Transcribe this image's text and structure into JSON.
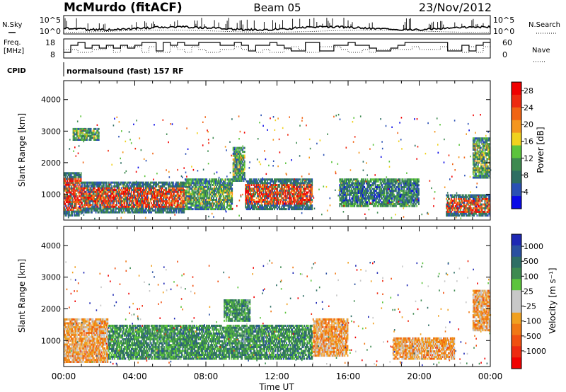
{
  "header": {
    "station": "McMurdo (fitACF)",
    "beam": "Beam 05",
    "date": "23/Nov/2012"
  },
  "summary_panel": {
    "left_labels": [
      "N.Sky",
      "Freq.",
      "[MHz]",
      "CPID"
    ],
    "right_labels": [
      "N.Search",
      "Nave"
    ],
    "noise_ticks": [
      "10^5",
      "10^0"
    ],
    "noise_ticks_right": [
      "10^5",
      "10^0"
    ],
    "freq_ticks": [
      "18",
      "8"
    ],
    "nave_ticks": [
      "60",
      "0"
    ],
    "cpid_text": "normalsound (fast) 157 RF"
  },
  "chart_data": [
    {
      "type": "heatmap",
      "name": "power",
      "ylabel": "Slant Range [km]",
      "ylim": [
        180,
        4600
      ],
      "yticks": [
        1000,
        2000,
        3000,
        4000
      ],
      "xlim": [
        0,
        24
      ],
      "xticks": [
        "00:00",
        "04:00",
        "08:00",
        "12:00",
        "16:00",
        "20:00",
        "00:00"
      ],
      "xlabel": "Time UT",
      "colorbar": {
        "label": "Power [dB]",
        "ticks": [
          "4",
          "8",
          "12",
          "16",
          "20",
          "24",
          "28"
        ],
        "colors": [
          "#0a0ae6",
          "#2a50b4",
          "#2e6e62",
          "#3e8a50",
          "#5cc43c",
          "#f0d21e",
          "#f4961e",
          "#f06414",
          "#ee2a10",
          "#f00000"
        ]
      },
      "echo_regions": [
        {
          "t": [
            0.0,
            1.0
          ],
          "r": [
            300,
            1700
          ],
          "level": "high"
        },
        {
          "t": [
            1.0,
            6.8
          ],
          "r": [
            400,
            1400
          ],
          "level": "high"
        },
        {
          "t": [
            6.8,
            9.5
          ],
          "r": [
            500,
            1500
          ],
          "level": "medium"
        },
        {
          "t": [
            9.5,
            10.2
          ],
          "r": [
            1400,
            2500
          ],
          "level": "medium"
        },
        {
          "t": [
            10.2,
            14.0
          ],
          "r": [
            500,
            1500
          ],
          "level": "high"
        },
        {
          "t": [
            15.5,
            20.0
          ],
          "r": [
            600,
            1500
          ],
          "level": "low"
        },
        {
          "t": [
            21.5,
            24.0
          ],
          "r": [
            300,
            1000
          ],
          "level": "high"
        },
        {
          "t": [
            23.0,
            24.0
          ],
          "r": [
            1500,
            2800
          ],
          "level": "medium"
        },
        {
          "t": [
            0.5,
            2.0
          ],
          "r": [
            2700,
            3100
          ],
          "level": "medium"
        }
      ]
    },
    {
      "type": "heatmap",
      "name": "velocity",
      "ylabel": "Slant Range [km]",
      "ylim": [
        180,
        4600
      ],
      "yticks": [
        1000,
        2000,
        3000,
        4000
      ],
      "xlim": [
        0,
        24
      ],
      "xticks": [
        "00:00",
        "04:00",
        "08:00",
        "12:00",
        "16:00",
        "20:00",
        "00:00"
      ],
      "xlabel": "Time UT",
      "colorbar": {
        "label": "Velocity [m s⁻¹]",
        "ticks": [
          "1000",
          "500",
          "100",
          "25",
          "-25",
          "-100",
          "-500",
          "-1000"
        ],
        "colors": [
          "#1e28b4",
          "#2a50a0",
          "#2e6e64",
          "#3e8a50",
          "#5cc43c",
          "#c8c8c8",
          "#c8c8c8",
          "#f0a020",
          "#f07814",
          "#f05010",
          "#ee2a10",
          "#f00000"
        ]
      },
      "echo_regions": [
        {
          "t": [
            0.0,
            2.5
          ],
          "r": [
            300,
            1700
          ],
          "level": "negative"
        },
        {
          "t": [
            2.5,
            14.0
          ],
          "r": [
            400,
            1500
          ],
          "level": "positive"
        },
        {
          "t": [
            9.0,
            10.5
          ],
          "r": [
            1600,
            2300
          ],
          "level": "positive"
        },
        {
          "t": [
            14.0,
            16.0
          ],
          "r": [
            500,
            1700
          ],
          "level": "negative"
        },
        {
          "t": [
            18.5,
            22.0
          ],
          "r": [
            400,
            1100
          ],
          "level": "negative"
        },
        {
          "t": [
            23.0,
            24.0
          ],
          "r": [
            1300,
            2600
          ],
          "level": "negative"
        }
      ]
    }
  ]
}
